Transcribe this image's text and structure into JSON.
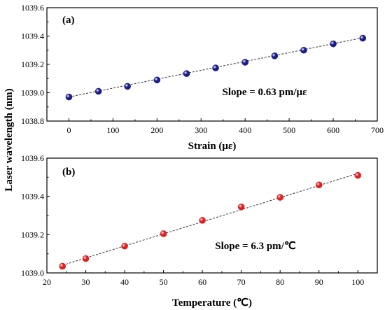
{
  "figure": {
    "ylabel": "Laser wavelength (nm)"
  },
  "chart_data": [
    {
      "type": "scatter",
      "panel_label": "(a)",
      "xlabel": "Strain (με)",
      "ylabel": "Laser wavelength (nm)",
      "xlim": [
        -50,
        700
      ],
      "ylim": [
        1038.8,
        1039.6
      ],
      "xticks": [
        "0",
        "100",
        "200",
        "300",
        "400",
        "500",
        "600",
        "700"
      ],
      "yticks": [
        "1038.8",
        "1039.0",
        "1039.2",
        "1039.4",
        "1039.6"
      ],
      "x": [
        0,
        67,
        133,
        200,
        267,
        333,
        400,
        467,
        533,
        600,
        667
      ],
      "y": [
        1038.97,
        1039.01,
        1039.045,
        1039.09,
        1039.135,
        1039.175,
        1039.215,
        1039.26,
        1039.3,
        1039.345,
        1039.385
      ],
      "marker_color": "#1c1c8a",
      "fit": {
        "x": [
          0,
          667
        ],
        "y": [
          1038.97,
          1039.388
        ]
      },
      "annotation": "Slope = 0.63 pm/με",
      "grid": false
    },
    {
      "type": "scatter",
      "panel_label": "(b)",
      "xlabel": "Temperature (℃)",
      "ylabel": "Laser wavelength (nm)",
      "xlim": [
        20,
        105
      ],
      "ylim": [
        1039.0,
        1039.6
      ],
      "xticks": [
        "20",
        "30",
        "40",
        "50",
        "60",
        "70",
        "80",
        "90",
        "100"
      ],
      "yticks": [
        "1039.0",
        "1039.2",
        "1039.4",
        "1039.6"
      ],
      "x": [
        24,
        30,
        40,
        50,
        60,
        70,
        80,
        90,
        100
      ],
      "y": [
        1039.035,
        1039.075,
        1039.14,
        1039.205,
        1039.275,
        1039.345,
        1039.395,
        1039.46,
        1039.51
      ],
      "marker_color": "#e02020",
      "fit": {
        "x": [
          24,
          100
        ],
        "y": [
          1039.04,
          1039.52
        ]
      },
      "annotation": "Slope = 6.3 pm/℃",
      "grid": false
    }
  ]
}
